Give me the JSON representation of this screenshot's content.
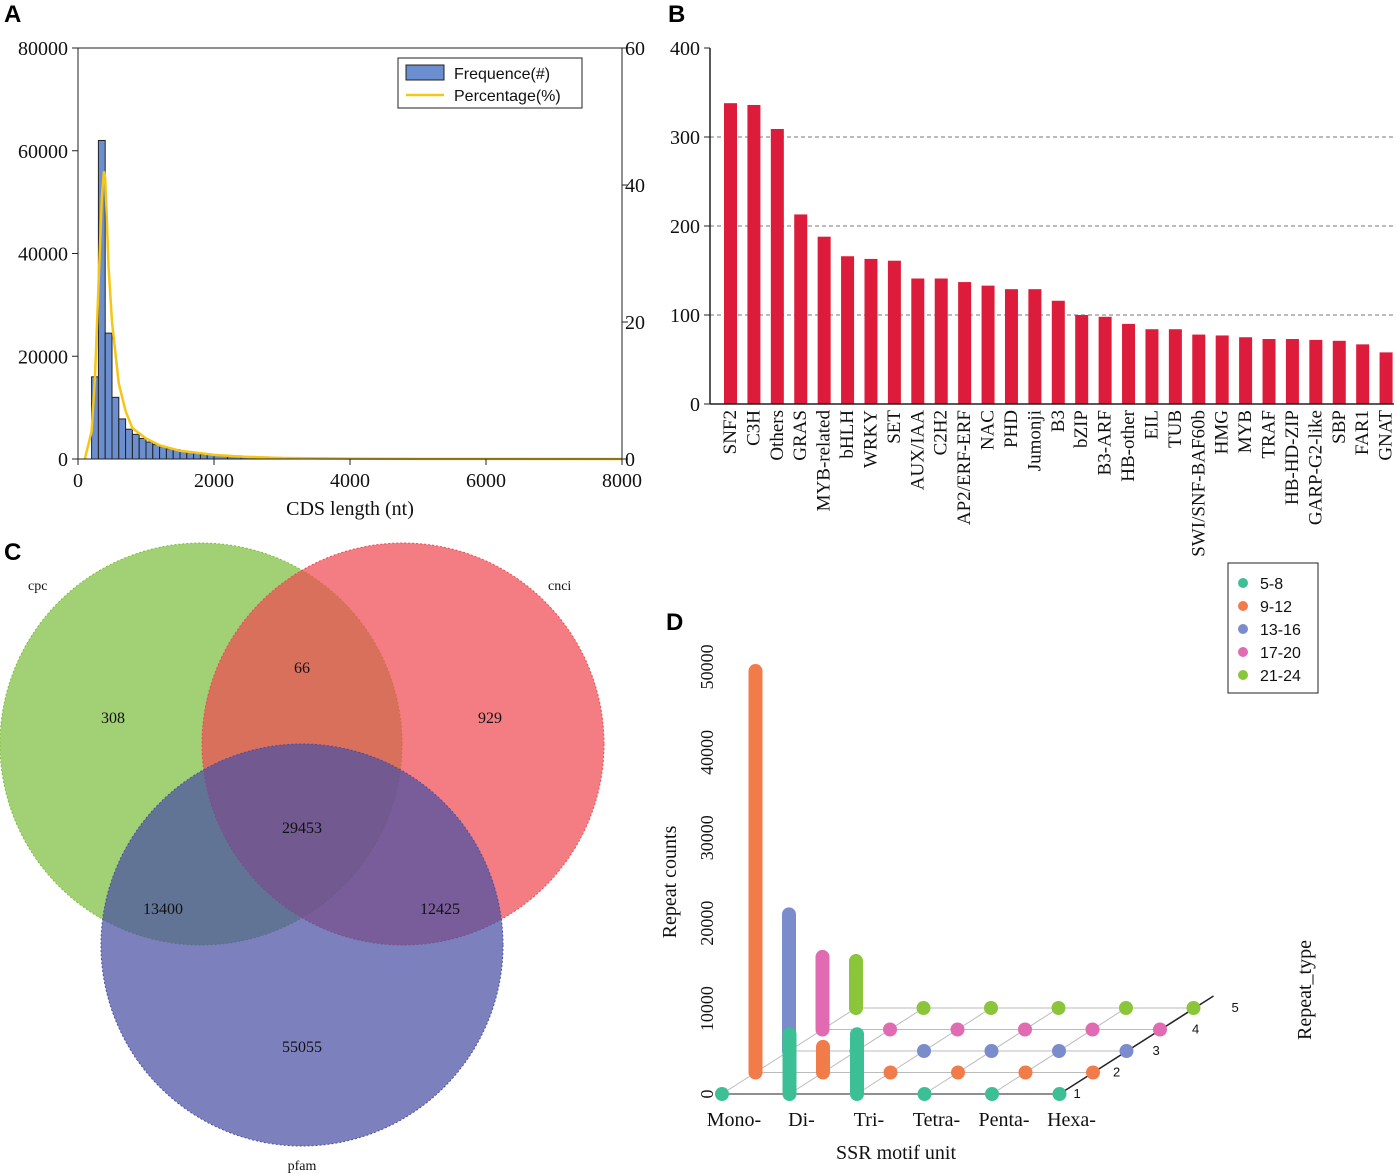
{
  "panels": {
    "a": "A",
    "b": "B",
    "c": "C",
    "d": "D"
  },
  "chart_data": [
    {
      "id": "A",
      "type": "bar",
      "xlabel": "CDS length (nt)",
      "ylabel": "",
      "xlim": [
        0,
        8000
      ],
      "ylim": [
        0,
        80000
      ],
      "y2lim": [
        0,
        60
      ],
      "xticks": [
        "0",
        "2000",
        "4000",
        "6000",
        "8000"
      ],
      "yticks": [
        "0",
        "20000",
        "40000",
        "60000",
        "80000"
      ],
      "y2ticks": [
        "0",
        "20",
        "40",
        "60"
      ],
      "bin_width": 100,
      "bins_start": [
        200,
        300,
        400,
        500,
        600,
        700,
        800,
        900,
        1000,
        1100,
        1200,
        1300,
        1400,
        1500,
        1600,
        1700,
        1800,
        1900,
        2000,
        2200,
        2400,
        2600,
        2800,
        3000
      ],
      "values": [
        16000,
        62000,
        24500,
        12000,
        7800,
        5800,
        4800,
        4000,
        3300,
        2800,
        2400,
        2000,
        1800,
        1500,
        1300,
        1100,
        900,
        800,
        700,
        600,
        500,
        400,
        300,
        250
      ],
      "series": [
        {
          "name": "Frequence(#)",
          "kind": "bar",
          "color": "#6b8fce"
        },
        {
          "name": "Percentage(%)",
          "kind": "line",
          "color": "#f5c518",
          "x": [
            100,
            200,
            250,
            300,
            350,
            380,
            400,
            420,
            450,
            500,
            600,
            700,
            800,
            1000,
            1200,
            1500,
            2000,
            2500,
            3000,
            4000,
            5000,
            8000
          ],
          "y": [
            0,
            4,
            12,
            25,
            38,
            42,
            41,
            36,
            28,
            20,
            11,
            7,
            4.5,
            3,
            2,
            1.2,
            0.6,
            0.3,
            0.15,
            0.05,
            0.02,
            0
          ]
        }
      ]
    },
    {
      "id": "B",
      "type": "bar",
      "title": "",
      "ylim": [
        0,
        400
      ],
      "yticks": [
        "0",
        "100",
        "200",
        "300",
        "400"
      ],
      "grid": [
        100,
        200,
        300
      ],
      "color": "#dc1c3a",
      "categories": [
        "SNF2",
        "C3H",
        "Others",
        "GRAS",
        "MYB-related",
        "bHLH",
        "WRKY",
        "SET",
        "AUX/IAA",
        "C2H2",
        "AP2/ERF-ERF",
        "NAC",
        "PHD",
        "Jumonji",
        "B3",
        "bZIP",
        "B3-ARF",
        "HB-other",
        "EIL",
        "TUB",
        "SWI/SNF-BAF60b",
        "HMG",
        "MYB",
        "TRAF",
        "HB-HD-ZIP",
        "GARP-G2-like",
        "SBP",
        "FAR1",
        "GNAT"
      ],
      "values": [
        338,
        336,
        309,
        213,
        188,
        166,
        163,
        161,
        141,
        141,
        137,
        133,
        129,
        129,
        116,
        100,
        98,
        90,
        84,
        84,
        78,
        77,
        75,
        73,
        73,
        72,
        71,
        67,
        58
      ]
    },
    {
      "id": "C",
      "type": "venn",
      "sets": [
        {
          "name": "cpc",
          "color": "#7dbf3e"
        },
        {
          "name": "cnci",
          "color": "#ee4b52"
        },
        {
          "name": "pfam",
          "color": "#4a50a3"
        }
      ],
      "regions": {
        "cpc_only": "308",
        "cpc_cnci": "66",
        "cnci_only": "929",
        "all": "29453",
        "cpc_pfam": "13400",
        "cnci_pfam": "12425",
        "pfam_only": "55055"
      }
    },
    {
      "id": "D",
      "type": "bar3d",
      "xlabel": "SSR motif unit",
      "ylabel": "Repeat counts",
      "zlabel": "Repeat_type",
      "categories": [
        "Mono-",
        "Di-",
        "Tri-",
        "Tetra-",
        "Penta-",
        "Hexa-"
      ],
      "yticks": [
        "0",
        "10000",
        "20000",
        "30000",
        "40000",
        "50000"
      ],
      "zticks": [
        "1",
        "2",
        "3",
        "4",
        "5"
      ],
      "ylim": [
        0,
        50000
      ],
      "series": [
        {
          "name": "5-8",
          "color": "#3dbf96",
          "values": [
            0,
            7000,
            7000,
            0,
            0,
            0
          ]
        },
        {
          "name": "9-12",
          "color": "#f27c49",
          "values": [
            47000,
            3000,
            0,
            0,
            0,
            0
          ]
        },
        {
          "name": "13-16",
          "color": "#7a8ccc",
          "values": [
            16000,
            0,
            0,
            0,
            0,
            0
          ]
        },
        {
          "name": "17-20",
          "color": "#e06bb2",
          "values": [
            8500,
            0,
            0,
            0,
            0,
            0
          ]
        },
        {
          "name": "21-24",
          "color": "#8bc53a",
          "values": [
            5500,
            0,
            0,
            0,
            0,
            0
          ]
        }
      ]
    }
  ]
}
